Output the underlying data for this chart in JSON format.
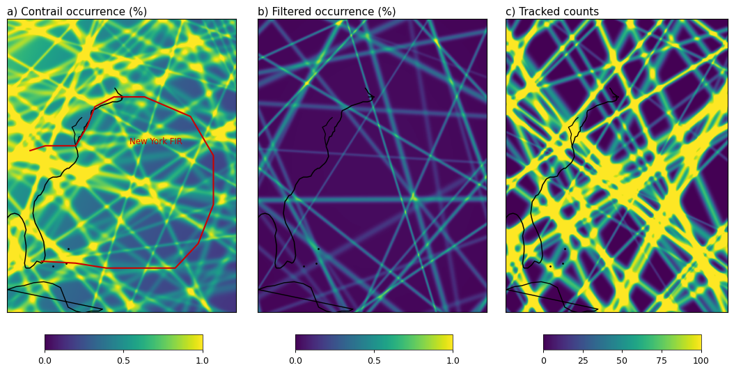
{
  "title_a": "a) Contrail occurrence (%)",
  "title_b": "b) Filtered occurrence (%)",
  "title_c": "c) Tracked counts",
  "colorbar_a_ticks": [
    0.0,
    0.5,
    1.0
  ],
  "colorbar_b_ticks": [
    0.0,
    0.5,
    1.0
  ],
  "colorbar_c_ticks": [
    0,
    25,
    50,
    75,
    100
  ],
  "cmap": "viridis",
  "ny_fir_label": "New York FIR",
  "ny_fir_color": "#cc0000",
  "title_fontsize": 11,
  "lon_min": -85,
  "lon_max": -55,
  "lat_min": 20,
  "lat_max": 50
}
